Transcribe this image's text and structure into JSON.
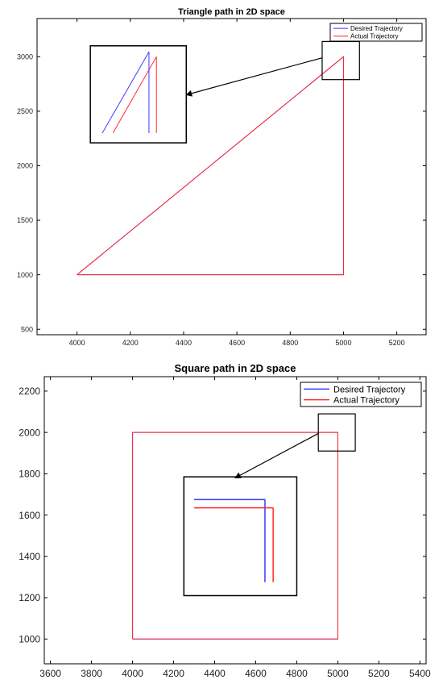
{
  "figure": {
    "layout": "two stacked panels"
  },
  "chart_data": [
    {
      "type": "line",
      "title": "Triangle path in 2D space",
      "xlabel": "",
      "ylabel": "",
      "xlim": [
        3850,
        5310
      ],
      "ylim": [
        450,
        3350
      ],
      "xticks": [
        4000,
        4200,
        4400,
        4600,
        4800,
        5000,
        5200
      ],
      "yticks": [
        500,
        1000,
        1500,
        2000,
        2500,
        3000
      ],
      "grid": false,
      "legend_position": "top-right",
      "series": [
        {
          "name": "Desired Trajectory",
          "color": "#3a3aff",
          "x": [
            4000,
            5000,
            5000,
            4000
          ],
          "y": [
            1000,
            3000,
            1000,
            1000
          ]
        },
        {
          "name": "Actual Trajectory",
          "color": "#ff2a2a",
          "x": [
            4000,
            5000,
            5000,
            4000
          ],
          "y": [
            1000,
            3000,
            1000,
            1000
          ]
        }
      ],
      "annotations": [
        {
          "type": "zoom-box",
          "region_x": [
            4920,
            5060
          ],
          "region_y": [
            2790,
            3140
          ],
          "callout_to": [
            4410,
            2650
          ],
          "inset": {
            "x": [
              4050,
              4410
            ],
            "y": [
              2210,
              3100
            ],
            "desired": {
              "diag": [
                [
                  4095,
                  2300
                ],
                [
                  4270,
                  3045
                ]
              ],
              "vert": [
                [
                  4270,
                  3045
                ],
                [
                  4270,
                  2300
                ]
              ]
            },
            "actual": {
              "diag": [
                [
                  4135,
                  2300
                ],
                [
                  4298,
                  3000
                ]
              ],
              "vert": [
                [
                  4298,
                  3000
                ],
                [
                  4298,
                  2300
                ]
              ]
            }
          }
        }
      ]
    },
    {
      "type": "line",
      "title": "Square path in 2D space",
      "xlabel": "",
      "ylabel": "",
      "xlim": [
        3570,
        5430
      ],
      "ylim": [
        880,
        2270
      ],
      "xticks": [
        3600,
        3800,
        4000,
        4200,
        4400,
        4600,
        4800,
        5000,
        5200,
        5400
      ],
      "yticks": [
        1000,
        1200,
        1400,
        1600,
        1800,
        2000,
        2200
      ],
      "grid": false,
      "legend_position": "top-right",
      "series": [
        {
          "name": "Desired Trajectory",
          "color": "#3a3aff",
          "x": [
            4000,
            4000,
            5000,
            5000,
            4000
          ],
          "y": [
            1000,
            2000,
            2000,
            1000,
            1000
          ]
        },
        {
          "name": "Actual Trajectory",
          "color": "#ff2a2a",
          "x": [
            4000,
            4000,
            5000,
            5000,
            4000
          ],
          "y": [
            1000,
            2000,
            2000,
            1000,
            1000
          ]
        }
      ],
      "annotations": [
        {
          "type": "zoom-box",
          "region_x": [
            4905,
            5085
          ],
          "region_y": [
            1910,
            2090
          ],
          "callout_to": [
            4500,
            1780
          ],
          "inset": {
            "x": [
              4250,
              4800
            ],
            "y": [
              1210,
              1785
            ],
            "desired": {
              "horiz": [
                [
                  4300,
                  1675
                ],
                [
                  4645,
                  1675
                ]
              ],
              "vert": [
                [
                  4645,
                  1675
                ],
                [
                  4645,
                  1275
                ]
              ]
            },
            "actual": {
              "horiz": [
                [
                  4300,
                  1635
                ],
                [
                  4685,
                  1635
                ]
              ],
              "vert": [
                [
                  4685,
                  1635
                ],
                [
                  4685,
                  1275
                ]
              ]
            }
          }
        }
      ]
    }
  ]
}
